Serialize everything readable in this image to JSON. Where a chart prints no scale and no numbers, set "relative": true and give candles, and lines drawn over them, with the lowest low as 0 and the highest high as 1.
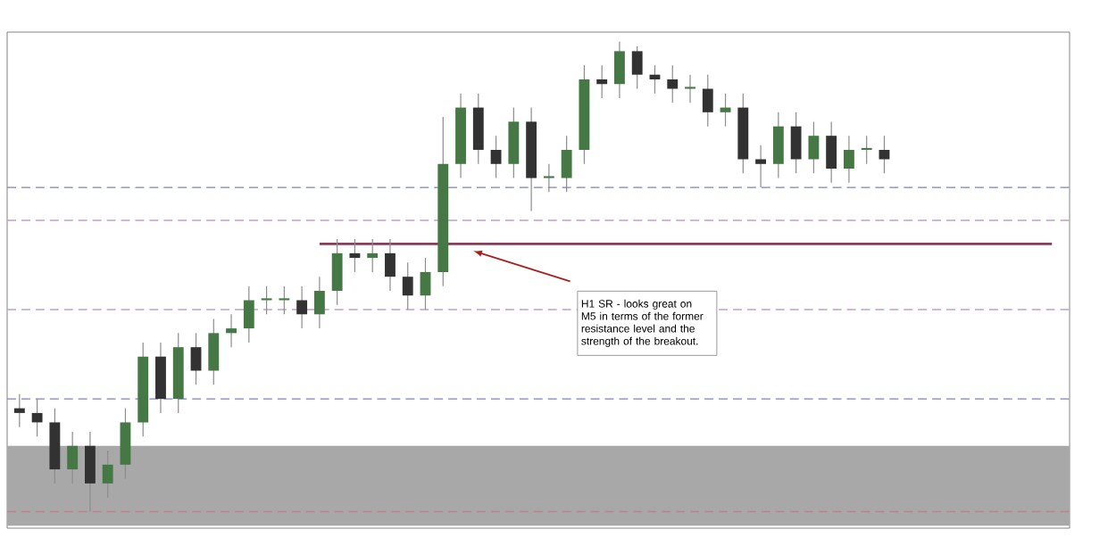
{
  "chart_data": {
    "type": "candlestick",
    "relative": true,
    "tick_labels": false,
    "categories": [
      null,
      null,
      null,
      null,
      null,
      null,
      null,
      null,
      null,
      null,
      null,
      null,
      null,
      null,
      null,
      null,
      null,
      null,
      null,
      null,
      null,
      null,
      null,
      null,
      null,
      null,
      null,
      null,
      null,
      null,
      null,
      null,
      null,
      null,
      null,
      null,
      null,
      null,
      null,
      null,
      null,
      null,
      null,
      null,
      null,
      null,
      null,
      null,
      null,
      null
    ],
    "ohlc": [
      [
        0.22,
        0.25,
        0.18,
        0.21
      ],
      [
        0.21,
        0.24,
        0.16,
        0.19
      ],
      [
        0.19,
        0.22,
        0.06,
        0.09
      ],
      [
        0.09,
        0.17,
        0.06,
        0.14
      ],
      [
        0.14,
        0.17,
        0,
        0.06
      ],
      [
        0.06,
        0.13,
        0.03,
        0.1
      ],
      [
        0.1,
        0.22,
        0.07,
        0.19
      ],
      [
        0.19,
        0.36,
        0.16,
        0.33
      ],
      [
        0.33,
        0.36,
        0.21,
        0.24
      ],
      [
        0.24,
        0.38,
        0.21,
        0.35
      ],
      [
        0.35,
        0.38,
        0.27,
        0.3
      ],
      [
        0.3,
        0.41,
        0.27,
        0.38
      ],
      [
        0.38,
        0.42,
        0.35,
        0.39
      ],
      [
        0.39,
        0.48,
        0.36,
        0.45
      ],
      [
        0.45,
        0.48,
        0.42,
        0.45
      ],
      [
        0.45,
        0.48,
        0.42,
        0.45
      ],
      [
        0.45,
        0.48,
        0.39,
        0.42
      ],
      [
        0.42,
        0.5,
        0.39,
        0.47
      ],
      [
        0.47,
        0.58,
        0.44,
        0.55
      ],
      [
        0.55,
        0.58,
        0.51,
        0.54
      ],
      [
        0.54,
        0.58,
        0.51,
        0.55
      ],
      [
        0.55,
        0.58,
        0.47,
        0.5
      ],
      [
        0.5,
        0.53,
        0.43,
        0.46
      ],
      [
        0.46,
        0.54,
        0.43,
        0.51
      ],
      [
        0.51,
        0.84,
        0.48,
        0.74
      ],
      [
        0.74,
        0.89,
        0.71,
        0.86
      ],
      [
        0.86,
        0.89,
        0.74,
        0.77
      ],
      [
        0.77,
        0.8,
        0.71,
        0.74
      ],
      [
        0.74,
        0.86,
        0.71,
        0.83
      ],
      [
        0.83,
        0.86,
        0.64,
        0.71
      ],
      [
        0.71,
        0.74,
        0.68,
        0.71
      ],
      [
        0.71,
        0.8,
        0.68,
        0.77
      ],
      [
        0.77,
        0.95,
        0.74,
        0.92
      ],
      [
        0.92,
        0.95,
        0.88,
        0.91
      ],
      [
        0.91,
        1,
        0.88,
        0.98
      ],
      [
        0.98,
        0.99,
        0.9,
        0.93
      ],
      [
        0.93,
        0.95,
        0.89,
        0.92
      ],
      [
        0.92,
        0.95,
        0.87,
        0.9
      ],
      [
        0.9,
        0.93,
        0.87,
        0.9
      ],
      [
        0.9,
        0.93,
        0.82,
        0.85
      ],
      [
        0.85,
        0.89,
        0.82,
        0.86
      ],
      [
        0.86,
        0.89,
        0.72,
        0.75
      ],
      [
        0.75,
        0.78,
        0.69,
        0.74
      ],
      [
        0.74,
        0.85,
        0.71,
        0.82
      ],
      [
        0.82,
        0.85,
        0.72,
        0.75
      ],
      [
        0.75,
        0.83,
        0.72,
        0.8
      ],
      [
        0.8,
        0.83,
        0.7,
        0.73
      ],
      [
        0.73,
        0.8,
        0.7,
        0.77
      ],
      [
        0.77,
        0.8,
        0.74,
        0.77
      ],
      [
        0.77,
        0.8,
        0.72,
        0.75
      ]
    ],
    "ref_lines": [
      {
        "axis": "y",
        "value": 0.69,
        "color": "#8080c0",
        "line_style": "dashed"
      },
      {
        "axis": "y",
        "value": 0.62,
        "color": "#c0a0c8",
        "line_style": "dashed"
      },
      {
        "axis": "y",
        "value": 0.57,
        "color": "#8b3a5a",
        "line_style": "solid"
      },
      {
        "axis": "y",
        "value": 0.43,
        "color": "#c0a0c8",
        "line_style": "dashed"
      },
      {
        "axis": "y",
        "value": 0.24,
        "color": "#8080c0",
        "line_style": "dashed"
      },
      {
        "axis": "y",
        "value": 0,
        "color": "#c08090",
        "line_style": "dashed"
      }
    ],
    "bands": [
      {
        "axis": "y",
        "from": -0.03,
        "to": 0.14,
        "color": "#a8a8a8"
      }
    ],
    "annotations": [
      "H1 SR - looks great on M5 in terms of the former resistance level and the strength of the breakout."
    ]
  }
}
